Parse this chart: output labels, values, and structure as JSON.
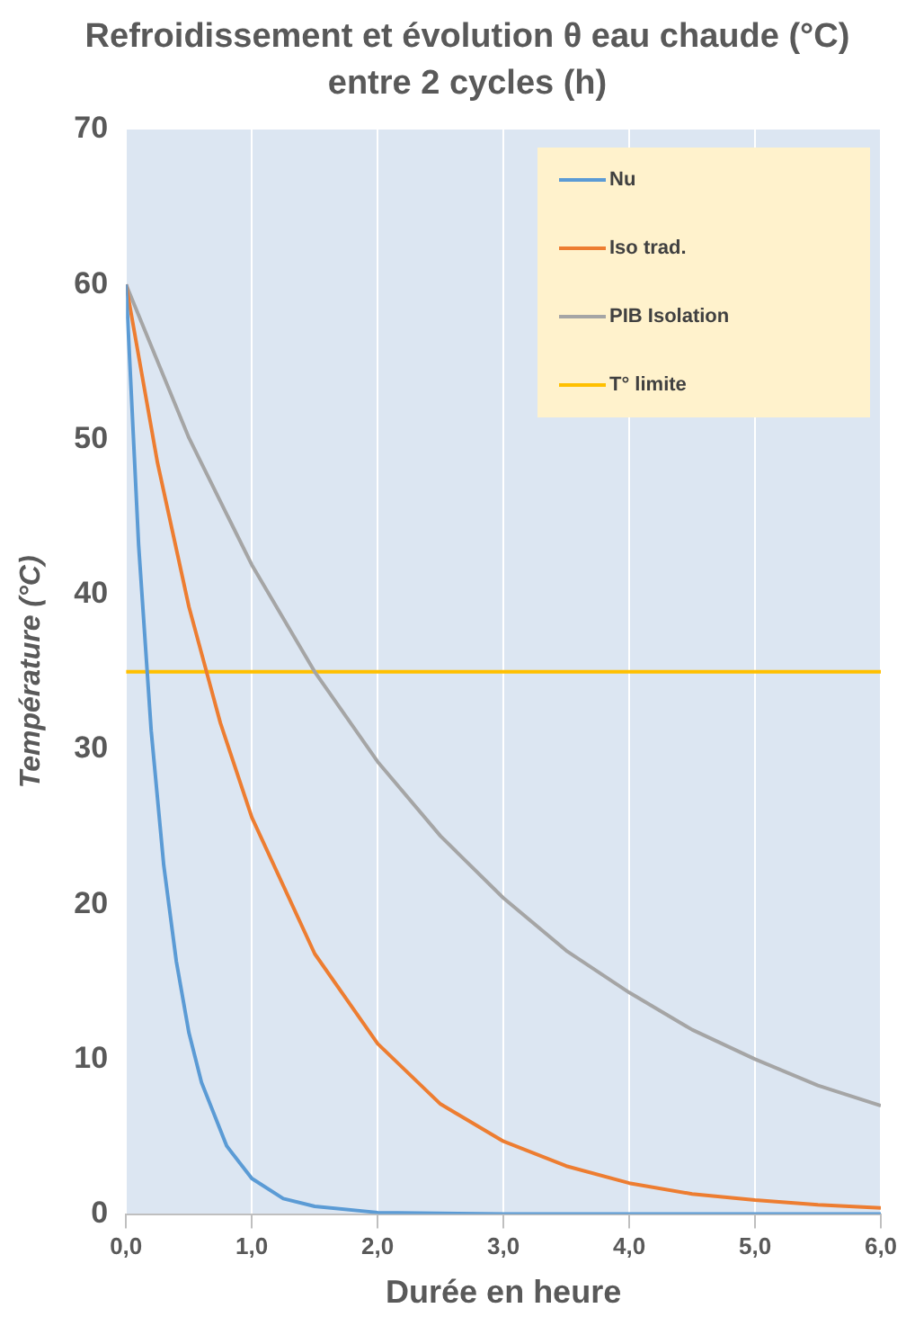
{
  "chart_data": {
    "type": "line",
    "title": "Refroidissement et évolution θ eau chaude (°C) entre 2 cycles (h)",
    "xlabel": "Durée en heure",
    "ylabel": "Température (°C)",
    "xlim": [
      0,
      6
    ],
    "xticks": [
      {
        "value": 0,
        "label": "0,0"
      },
      {
        "value": 1,
        "label": "1,0"
      },
      {
        "value": 2,
        "label": "2,0"
      },
      {
        "value": 3,
        "label": "3,0"
      },
      {
        "value": 4,
        "label": "4,0"
      },
      {
        "value": 5,
        "label": "5,0"
      },
      {
        "value": 6,
        "label": "6,0"
      }
    ],
    "ylim": [
      0,
      70
    ],
    "yticks": [
      0,
      10,
      20,
      30,
      40,
      50,
      60,
      70
    ],
    "grid": "x",
    "legend": "top right",
    "marker": "none",
    "line_style": "solid",
    "series": [
      {
        "name": "Nu",
        "color": "#5b9bd5",
        "x": [
          0,
          0.1,
          0.2,
          0.3,
          0.4,
          0.5,
          0.6,
          0.8,
          1.0,
          1.25,
          1.5,
          2,
          3,
          4,
          5,
          6
        ],
        "values": [
          60,
          43.2,
          31.2,
          22.5,
          16.3,
          11.7,
          8.5,
          4.4,
          2.3,
          1.0,
          0.5,
          0.1,
          0,
          0,
          0,
          0
        ]
      },
      {
        "name": "Iso trad.",
        "color": "#ed7d31",
        "x": [
          0,
          0.25,
          0.5,
          0.75,
          1,
          1.5,
          2,
          2.5,
          3,
          3.5,
          4,
          4.5,
          5,
          5.5,
          6
        ],
        "values": [
          60,
          48.5,
          39.2,
          31.7,
          25.6,
          16.8,
          11.0,
          7.1,
          4.7,
          3.1,
          2.0,
          1.3,
          0.9,
          0.6,
          0.4
        ]
      },
      {
        "name": "PIB Isolation",
        "color": "#a5a5a5",
        "x": [
          0,
          0.5,
          1,
          1.5,
          2,
          2.5,
          3,
          3.5,
          4,
          4.5,
          5,
          5.5,
          6
        ],
        "values": [
          60,
          50.1,
          41.9,
          35.0,
          29.2,
          24.4,
          20.4,
          17.0,
          14.3,
          11.9,
          10.0,
          8.3,
          7.0
        ]
      },
      {
        "name": "T° limite",
        "color": "#ffc000",
        "x": [
          0,
          6
        ],
        "values": [
          35,
          35
        ]
      }
    ]
  }
}
